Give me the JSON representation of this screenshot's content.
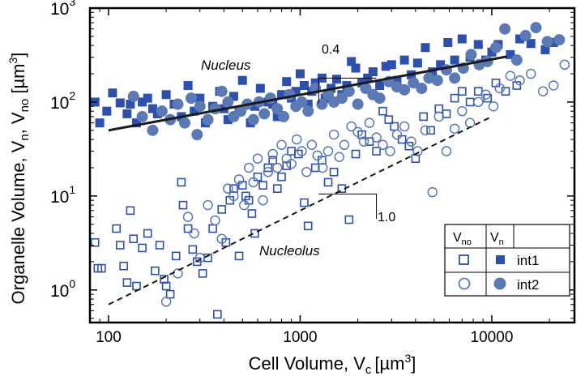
{
  "chart_data": {
    "type": "scatter",
    "title": "",
    "xscale": "log",
    "yscale": "log",
    "xlim": [
      80,
      27000
    ],
    "ylim": [
      0.45,
      1000
    ],
    "grid": false,
    "xlabel": {
      "main": "Cell Volume, V",
      "sub": "c",
      "unit": "[µm",
      "sup": "3",
      "close": "]"
    },
    "ylabel": {
      "p1": "Organelle Volume, V",
      "s1": "n",
      "p2": ", V",
      "s2": "no",
      "p3": " [µm",
      "sup": "3",
      "close": "]"
    },
    "x_ticks": [
      {
        "value": 100,
        "label": "100"
      },
      {
        "value": 1000,
        "label": "1000"
      },
      {
        "value": 10000,
        "label": "10000"
      }
    ],
    "y_ticks": [
      {
        "value": 1,
        "base": "10",
        "exp": "0"
      },
      {
        "value": 10,
        "base": "10",
        "exp": "1"
      },
      {
        "value": 100,
        "base": "10",
        "exp": "2"
      },
      {
        "value": 1000,
        "base": "10",
        "exp": "3"
      }
    ],
    "annotations": {
      "nucleus": "Nucleus",
      "nucleolus": "Nucleolus",
      "slope_nucleus": "0.4",
      "slope_nucleolus": "1.0"
    },
    "slope_guides": {
      "nucleus": {
        "points": [
          [
            1250,
            97
          ],
          [
            1250,
            180
          ],
          [
            2500,
            180
          ]
        ]
      },
      "nucleolus": {
        "points": [
          [
            1250,
            10.5
          ],
          [
            2500,
            10.5
          ],
          [
            2500,
            5.7
          ]
        ]
      }
    },
    "fits": [
      {
        "label": "nucleus-fit",
        "style": "solid",
        "x": [
          100,
          12000
        ],
        "y": [
          50,
          305
        ]
      },
      {
        "label": "nucleolus-fit",
        "style": "dashed",
        "x": [
          100,
          10000
        ],
        "y": [
          0.7,
          70
        ]
      }
    ],
    "legend": {
      "placement": "bottom-right",
      "col1": {
        "main": "V",
        "sub": "no"
      },
      "col2": {
        "main": "V",
        "sub": "n"
      },
      "rows": [
        "int1",
        "int2"
      ]
    },
    "colors": {
      "int1": "#2d4fae",
      "int2": "#5a79b5",
      "axes": "#000000",
      "fit": "#1a1a1a"
    },
    "series": [
      {
        "marker": "square-filled",
        "color": "int1",
        "points": [
          [
            85,
            100
          ],
          [
            90,
            60
          ],
          [
            98,
            80
          ],
          [
            105,
            125
          ],
          [
            115,
            98
          ],
          [
            125,
            75
          ],
          [
            130,
            95
          ],
          [
            140,
            60
          ],
          [
            150,
            100
          ],
          [
            160,
            110
          ],
          [
            170,
            85
          ],
          [
            180,
            75
          ],
          [
            200,
            120
          ],
          [
            220,
            95
          ],
          [
            240,
            70
          ],
          [
            260,
            150
          ],
          [
            280,
            80
          ],
          [
            300,
            110
          ],
          [
            320,
            60
          ],
          [
            350,
            90
          ],
          [
            380,
            130
          ],
          [
            400,
            85
          ],
          [
            420,
            65
          ],
          [
            450,
            115
          ],
          [
            480,
            80
          ],
          [
            500,
            170
          ],
          [
            550,
            60
          ],
          [
            580,
            90
          ],
          [
            620,
            140
          ],
          [
            680,
            100
          ],
          [
            720,
            95
          ],
          [
            760,
            70
          ],
          [
            800,
            120
          ],
          [
            850,
            165
          ],
          [
            900,
            110
          ],
          [
            950,
            130
          ],
          [
            1000,
            200
          ],
          [
            1050,
            150
          ],
          [
            1100,
            95
          ],
          [
            1150,
            130
          ],
          [
            1200,
            160
          ],
          [
            1300,
            180
          ],
          [
            1350,
            110
          ],
          [
            1450,
            140
          ],
          [
            1550,
            175
          ],
          [
            1650,
            120
          ],
          [
            1750,
            150
          ],
          [
            1850,
            270
          ],
          [
            1950,
            230
          ],
          [
            2100,
            160
          ],
          [
            2250,
            180
          ],
          [
            2400,
            210
          ],
          [
            2600,
            150
          ],
          [
            2800,
            240
          ],
          [
            3000,
            250
          ],
          [
            3200,
            170
          ],
          [
            3500,
            280
          ],
          [
            3800,
            195
          ],
          [
            4100,
            260
          ],
          [
            4500,
            380
          ],
          [
            4900,
            210
          ],
          [
            5400,
            250
          ],
          [
            5900,
            430
          ],
          [
            6400,
            280
          ],
          [
            7000,
            470
          ],
          [
            7700,
            300
          ],
          [
            8500,
            410
          ],
          [
            9300,
            280
          ],
          [
            10000,
            340
          ],
          [
            10800,
            410
          ],
          [
            12500,
            320
          ],
          [
            14000,
            470
          ],
          [
            16000,
            420
          ],
          [
            19000,
            360
          ],
          [
            21000,
            430
          ]
        ]
      },
      {
        "marker": "circle-filled",
        "color": "int2",
        "points": [
          [
            135,
            115
          ],
          [
            150,
            70
          ],
          [
            170,
            50
          ],
          [
            190,
            80
          ],
          [
            210,
            65
          ],
          [
            230,
            95
          ],
          [
            250,
            60
          ],
          [
            270,
            110
          ],
          [
            290,
            45
          ],
          [
            300,
            90
          ],
          [
            330,
            65
          ],
          [
            360,
            85
          ],
          [
            390,
            130
          ],
          [
            420,
            100
          ],
          [
            450,
            70
          ],
          [
            490,
            80
          ],
          [
            530,
            95
          ],
          [
            570,
            65
          ],
          [
            610,
            100
          ],
          [
            650,
            75
          ],
          [
            700,
            110
          ],
          [
            760,
            85
          ],
          [
            820,
            70
          ],
          [
            880,
            120
          ],
          [
            950,
            90
          ],
          [
            1020,
            100
          ],
          [
            1100,
            80
          ],
          [
            1200,
            140
          ],
          [
            1300,
            95
          ],
          [
            1400,
            120
          ],
          [
            1500,
            100
          ],
          [
            1650,
            110
          ],
          [
            1800,
            130
          ],
          [
            2000,
            95
          ],
          [
            2200,
            140
          ],
          [
            2400,
            120
          ],
          [
            2600,
            110
          ],
          [
            2900,
            165
          ],
          [
            3200,
            145
          ],
          [
            3500,
            135
          ],
          [
            3900,
            160
          ],
          [
            4300,
            140
          ],
          [
            4700,
            180
          ],
          [
            5200,
            170
          ],
          [
            5800,
            220
          ],
          [
            6400,
            180
          ],
          [
            7100,
            230
          ],
          [
            7800,
            320
          ],
          [
            8600,
            250
          ],
          [
            9500,
            270
          ],
          [
            10500,
            380
          ],
          [
            11700,
            600
          ],
          [
            13500,
            280
          ],
          [
            15000,
            510
          ],
          [
            17000,
            620
          ],
          [
            19500,
            440
          ],
          [
            22500,
            460
          ]
        ]
      },
      {
        "marker": "square-open",
        "color": "int1",
        "points": [
          [
            85,
            3.2
          ],
          [
            88,
            1.7
          ],
          [
            92,
            1.7
          ],
          [
            110,
            4.5
          ],
          [
            115,
            3.0
          ],
          [
            120,
            1.8
          ],
          [
            125,
            1.2
          ],
          [
            130,
            7.0
          ],
          [
            135,
            3.5
          ],
          [
            140,
            1.1
          ],
          [
            150,
            2.8
          ],
          [
            160,
            4.0
          ],
          [
            175,
            1.6
          ],
          [
            185,
            3.0
          ],
          [
            195,
            1.3
          ],
          [
            200,
            1.1
          ],
          [
            210,
            0.9
          ],
          [
            225,
            2.3
          ],
          [
            240,
            14
          ],
          [
            245,
            8.0
          ],
          [
            260,
            4.5
          ],
          [
            275,
            2.7
          ],
          [
            290,
            2.0
          ],
          [
            310,
            1.5
          ],
          [
            330,
            2.2
          ],
          [
            350,
            4.5
          ],
          [
            370,
            0.55
          ],
          [
            390,
            7.2
          ],
          [
            410,
            3.2
          ],
          [
            430,
            9.0
          ],
          [
            450,
            12
          ],
          [
            480,
            2.3
          ],
          [
            500,
            13
          ],
          [
            520,
            10
          ],
          [
            540,
            9
          ],
          [
            560,
            6.5
          ],
          [
            580,
            4.0
          ],
          [
            600,
            16
          ],
          [
            640,
            13
          ],
          [
            680,
            20
          ],
          [
            720,
            24
          ],
          [
            760,
            12
          ],
          [
            800,
            16
          ],
          [
            850,
            21
          ],
          [
            900,
            30
          ],
          [
            980,
            28
          ],
          [
            1050,
            8.5
          ],
          [
            1100,
            4.8
          ],
          [
            1200,
            20
          ],
          [
            1300,
            24
          ],
          [
            1400,
            14
          ],
          [
            1500,
            18
          ],
          [
            1650,
            12
          ],
          [
            1800,
            5.6
          ],
          [
            1950,
            28
          ],
          [
            2100,
            45
          ],
          [
            2300,
            38
          ],
          [
            2500,
            30
          ],
          [
            2700,
            80
          ],
          [
            2900,
            65
          ],
          [
            3100,
            55
          ],
          [
            3400,
            40
          ],
          [
            3700,
            34
          ],
          [
            4000,
            25
          ],
          [
            4400,
            70
          ],
          [
            4800,
            50
          ],
          [
            5300,
            85
          ],
          [
            5800,
            75
          ],
          [
            6400,
            110
          ],
          [
            7000,
            130
          ],
          [
            7700,
            100
          ],
          [
            8500,
            130
          ],
          [
            9500,
            110
          ],
          [
            10500,
            160
          ],
          [
            11800,
            130
          ],
          [
            13500,
            150
          ]
        ]
      },
      {
        "marker": "circle-open",
        "color": "int2",
        "points": [
          [
            200,
            0.75
          ],
          [
            230,
            1.5
          ],
          [
            260,
            6.0
          ],
          [
            280,
            4.0
          ],
          [
            300,
            2.2
          ],
          [
            330,
            8.0
          ],
          [
            360,
            5.5
          ],
          [
            390,
            3.5
          ],
          [
            420,
            12
          ],
          [
            450,
            10
          ],
          [
            480,
            15
          ],
          [
            510,
            8
          ],
          [
            540,
            20
          ],
          [
            570,
            14
          ],
          [
            600,
            25
          ],
          [
            640,
            9.0
          ],
          [
            680,
            18
          ],
          [
            720,
            28
          ],
          [
            760,
            20
          ],
          [
            800,
            35
          ],
          [
            850,
            25
          ],
          [
            900,
            22
          ],
          [
            960,
            40
          ],
          [
            1020,
            30
          ],
          [
            1080,
            18
          ],
          [
            1150,
            35
          ],
          [
            1230,
            27
          ],
          [
            1310,
            20
          ],
          [
            1400,
            30
          ],
          [
            1500,
            45
          ],
          [
            1600,
            26
          ],
          [
            1700,
            35
          ],
          [
            1850,
            55
          ],
          [
            2000,
            48
          ],
          [
            2150,
            38
          ],
          [
            2300,
            60
          ],
          [
            2500,
            42
          ],
          [
            2700,
            35
          ],
          [
            2950,
            30
          ],
          [
            3200,
            45
          ],
          [
            3500,
            55
          ],
          [
            3800,
            38
          ],
          [
            4100,
            30
          ],
          [
            4500,
            50
          ],
          [
            4900,
            11
          ],
          [
            5300,
            70
          ],
          [
            5800,
            30
          ],
          [
            6400,
            52
          ],
          [
            7000,
            80
          ],
          [
            7700,
            60
          ],
          [
            8500,
            100
          ],
          [
            9300,
            120
          ],
          [
            10200,
            90
          ],
          [
            11000,
            140
          ],
          [
            12500,
            190
          ],
          [
            14000,
            170
          ],
          [
            16000,
            200
          ],
          [
            18500,
            130
          ],
          [
            21000,
            150
          ],
          [
            24000,
            250
          ]
        ]
      }
    ]
  }
}
